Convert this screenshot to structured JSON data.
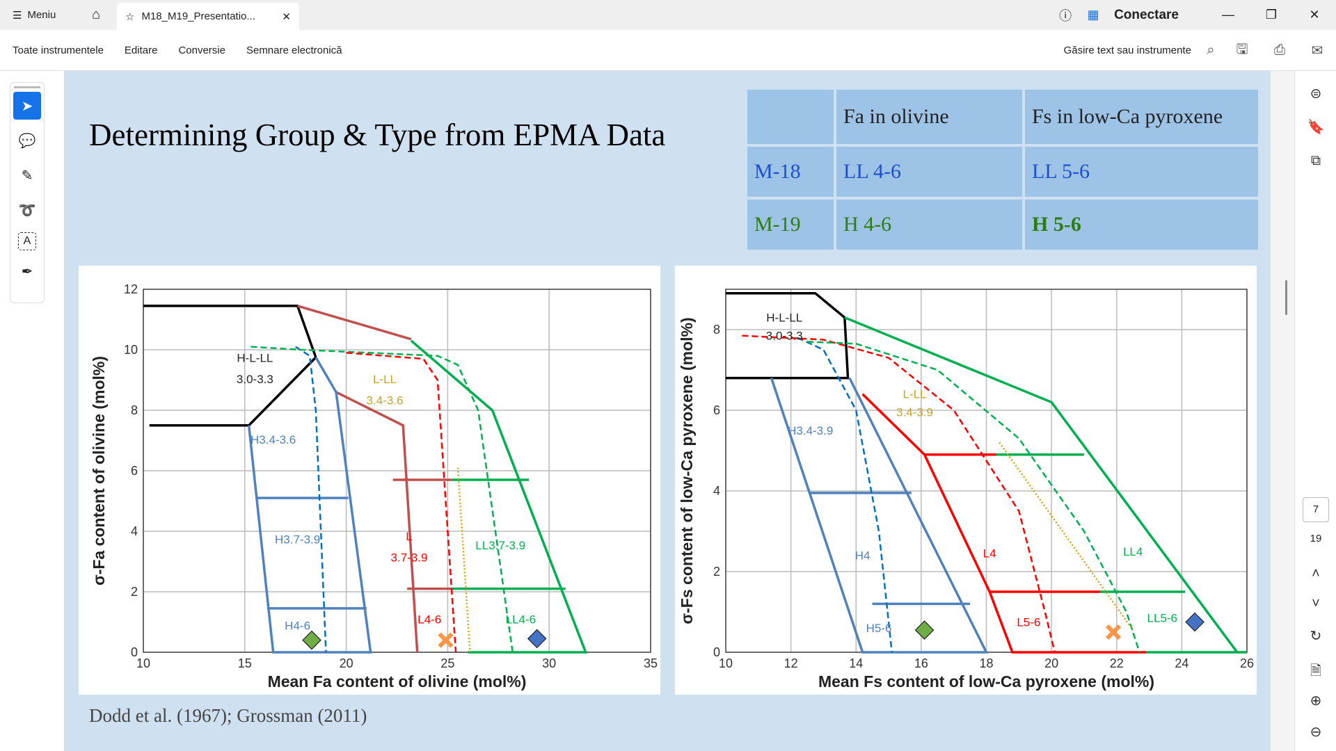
{
  "app": {
    "menu_label": "Meniu",
    "tab_title": "M18_M19_Presentatio...",
    "signin": "Conectare"
  },
  "toolbar": {
    "items": [
      "Toate instrumentele",
      "Editare",
      "Conversie",
      "Semnare electronică"
    ],
    "search_label": "Găsire text sau instrumente"
  },
  "navigation": {
    "current_page": "7",
    "total_pages": "19"
  },
  "slide": {
    "title": "Determining Group & Type from EPMA Data",
    "table": {
      "headers": [
        "",
        "Fa in olivine",
        "Fs in low-Ca pyroxene"
      ],
      "rows": [
        {
          "cells": [
            "M-18",
            "LL 4-6",
            "LL 5-6"
          ],
          "color": "#1f4fd1"
        },
        {
          "cells": [
            "M-19",
            "H 4-6",
            "H 5-6"
          ],
          "color": "#2e7d12"
        }
      ]
    },
    "citation": "Dodd et al. (1967); Grossman (2011)"
  },
  "chart_data": [
    {
      "type": "line",
      "xlabel": "Mean Fa content of olivine (mol%)",
      "ylabel": "σ-Fa content of olivine (mol%)",
      "xlim": [
        10,
        35
      ],
      "ylim": [
        0,
        12
      ],
      "xticks": [
        10,
        15,
        20,
        25,
        30,
        35
      ],
      "yticks": [
        0,
        2,
        4,
        6,
        8,
        10,
        12
      ],
      "grid": true,
      "series": [
        {
          "color": "#000000",
          "dash": "solid",
          "points": [
            [
              10,
              11.45
            ],
            [
              17.6,
              11.45
            ],
            [
              18.5,
              9.75
            ],
            [
              15.2,
              7.5
            ],
            [
              10.3,
              7.5
            ]
          ]
        },
        {
          "color": "#c0504d",
          "dash": "solid",
          "points": [
            [
              17.6,
              11.45
            ],
            [
              23.2,
              10.35
            ]
          ]
        },
        {
          "color": "#c0504d",
          "dash": "solid",
          "points": [
            [
              19.5,
              8.6
            ],
            [
              22.8,
              7.5
            ],
            [
              23.5,
              0
            ]
          ]
        },
        {
          "color": "#c0504d",
          "dash": "solid",
          "points": [
            [
              22.3,
              5.7
            ],
            [
              25.2,
              5.7
            ]
          ]
        },
        {
          "color": "#c0504d",
          "dash": "solid",
          "points": [
            [
              23,
              2.1
            ],
            [
              25.2,
              2.1
            ]
          ]
        },
        {
          "color": "#00b050",
          "dash": "solid",
          "points": [
            [
              23.2,
              10.3
            ],
            [
              27.2,
              8
            ],
            [
              31.8,
              0
            ],
            [
              26,
              0
            ]
          ]
        },
        {
          "color": "#00b050",
          "dash": "solid",
          "points": [
            [
              25.2,
              5.7
            ],
            [
              29,
              5.7
            ]
          ]
        },
        {
          "color": "#00b050",
          "dash": "solid",
          "points": [
            [
              25.2,
              2.1
            ],
            [
              30.8,
              2.1
            ]
          ]
        },
        {
          "color": "#4f81bd",
          "dash": "solid",
          "points": [
            [
              15.2,
              7.5
            ],
            [
              16.4,
              0
            ],
            [
              21.2,
              0
            ],
            [
              19.5,
              8.6
            ],
            [
              18.5,
              9.75
            ]
          ]
        },
        {
          "color": "#4f81bd",
          "dash": "solid",
          "points": [
            [
              15.6,
              5.1
            ],
            [
              20.1,
              5.1
            ]
          ]
        },
        {
          "color": "#4f81bd",
          "dash": "solid",
          "points": [
            [
              16.1,
              1.45
            ],
            [
              21,
              1.45
            ]
          ]
        },
        {
          "color": "#0070c0",
          "dash": "dashed",
          "points": [
            [
              17.5,
              10.1
            ],
            [
              18.2,
              9.8
            ],
            [
              18.5,
              8
            ],
            [
              19,
              0
            ]
          ]
        },
        {
          "color": "#00b050",
          "dash": "dashed",
          "points": [
            [
              15.3,
              10.1
            ],
            [
              17.8,
              10
            ],
            [
              24.5,
              9.8
            ],
            [
              25.5,
              9.5
            ],
            [
              26.5,
              8
            ],
            [
              28.2,
              0
            ]
          ]
        },
        {
          "color": "#ff0000",
          "dash": "dashed",
          "points": [
            [
              20,
              9.9
            ],
            [
              23.8,
              9.7
            ],
            [
              24.5,
              9
            ],
            [
              25.4,
              0
            ]
          ]
        },
        {
          "color": "#d4a017",
          "dash": "dotted",
          "points": [
            [
              25.5,
              6.1
            ],
            [
              26.1,
              0
            ]
          ]
        }
      ],
      "markers": [
        {
          "shape": "diamond",
          "color": "#70ad47",
          "x": 18.3,
          "y": 0.4
        },
        {
          "shape": "x",
          "color": "#f79646",
          "x": 24.9,
          "y": 0.4
        },
        {
          "shape": "diamond",
          "color": "#4472c4",
          "x": 29.4,
          "y": 0.45
        }
      ],
      "labels": [
        {
          "text": "H-L-LL",
          "x": 15.5,
          "y": 9.6,
          "color": "#222"
        },
        {
          "text": "3.0-3.3",
          "x": 15.5,
          "y": 8.9,
          "color": "#222"
        },
        {
          "text": "L-LL",
          "x": 21.9,
          "y": 8.9,
          "color": "#c9a227"
        },
        {
          "text": "3.4-3.6",
          "x": 21.9,
          "y": 8.2,
          "color": "#c9a227"
        },
        {
          "text": "H3.4-3.6",
          "x": 16.4,
          "y": 6.9,
          "color": "#4f81bd"
        },
        {
          "text": "H3.7-3.9",
          "x": 17.6,
          "y": 3.6,
          "color": "#4f81bd"
        },
        {
          "text": "L",
          "x": 23.1,
          "y": 3.7,
          "color": "#ff0000"
        },
        {
          "text": "3.7-3.9",
          "x": 23.1,
          "y": 3.0,
          "color": "#ff0000"
        },
        {
          "text": "LL3.7-3.9",
          "x": 27.6,
          "y": 3.4,
          "color": "#00b050"
        },
        {
          "text": "H4-6",
          "x": 17.6,
          "y": 0.75,
          "color": "#4f81bd"
        },
        {
          "text": "L4-6",
          "x": 24.1,
          "y": 0.95,
          "color": "#ff0000"
        },
        {
          "text": "LL4-6",
          "x": 28.6,
          "y": 0.95,
          "color": "#00b050"
        }
      ]
    },
    {
      "type": "line",
      "xlabel": "Mean Fs content of low-Ca pyroxene (mol%)",
      "ylabel": "σ-Fs content of low-Ca pyroxene (mol%)",
      "xlim": [
        10,
        26
      ],
      "ylim": [
        0,
        9
      ],
      "xticks": [
        10,
        12,
        14,
        16,
        18,
        20,
        22,
        24,
        26
      ],
      "yticks": [
        0,
        2,
        4,
        6,
        8
      ],
      "grid": true,
      "series": [
        {
          "color": "#000000",
          "dash": "solid",
          "points": [
            [
              10,
              8.9
            ],
            [
              12.75,
              8.9
            ],
            [
              13.65,
              8.3
            ],
            [
              13.75,
              6.8
            ],
            [
              10,
              6.8
            ]
          ]
        },
        {
          "color": "#00b050",
          "dash": "solid",
          "points": [
            [
              13.65,
              8.3
            ],
            [
              20,
              6.2
            ],
            [
              25.7,
              0
            ]
          ]
        },
        {
          "color": "#00b050",
          "dash": "solid",
          "points": [
            [
              18.3,
              4.9
            ],
            [
              21,
              4.9
            ]
          ]
        },
        {
          "color": "#00b050",
          "dash": "solid",
          "points": [
            [
              21.5,
              1.5
            ],
            [
              24.1,
              1.5
            ]
          ]
        },
        {
          "color": "#00b050",
          "dash": "solid",
          "points": [
            [
              22.9,
              0
            ],
            [
              26,
              0
            ]
          ]
        },
        {
          "color": "#ff0000",
          "dash": "solid",
          "points": [
            [
              14.2,
              6.4
            ],
            [
              16.1,
              4.9
            ],
            [
              18.1,
              1.5
            ],
            [
              18.8,
              0
            ],
            [
              22.9,
              0
            ]
          ]
        },
        {
          "color": "#ff0000",
          "dash": "solid",
          "points": [
            [
              16.1,
              4.9
            ],
            [
              18.3,
              4.9
            ]
          ]
        },
        {
          "color": "#ff0000",
          "dash": "solid",
          "points": [
            [
              18.1,
              1.5
            ],
            [
              21.5,
              1.5
            ]
          ]
        },
        {
          "color": "#4f81bd",
          "dash": "solid",
          "points": [
            [
              11.4,
              6.8
            ],
            [
              14.2,
              0
            ],
            [
              18,
              0
            ],
            [
              13.8,
              6.8
            ]
          ]
        },
        {
          "color": "#4f81bd",
          "dash": "solid",
          "points": [
            [
              12.6,
              3.95
            ],
            [
              15.7,
              3.95
            ]
          ]
        },
        {
          "color": "#4f81bd",
          "dash": "solid",
          "points": [
            [
              14.5,
              1.2
            ],
            [
              17.5,
              1.2
            ]
          ]
        },
        {
          "color": "#0070c0",
          "dash": "dashed",
          "points": [
            [
              12.2,
              7.8
            ],
            [
              13,
              7.5
            ],
            [
              14,
              6
            ],
            [
              14.7,
              3
            ],
            [
              15.1,
              0
            ]
          ]
        },
        {
          "color": "#ff0000",
          "dash": "dashed",
          "points": [
            [
              10.5,
              7.85
            ],
            [
              13,
              7.75
            ],
            [
              15,
              7.3
            ],
            [
              17,
              6
            ],
            [
              19,
              3.5
            ],
            [
              19.8,
              1
            ],
            [
              20.1,
              0
            ]
          ]
        },
        {
          "color": "#00b050",
          "dash": "dashed",
          "points": [
            [
              12.5,
              7.7
            ],
            [
              14,
              7.65
            ],
            [
              16.5,
              7
            ],
            [
              19,
              5.3
            ],
            [
              21,
              3
            ],
            [
              22.3,
              1
            ],
            [
              22.7,
              0
            ]
          ]
        },
        {
          "color": "#d4a017",
          "dash": "dotted",
          "points": [
            [
              18.4,
              5.2
            ],
            [
              22.5,
              0.55
            ]
          ]
        }
      ],
      "markers": [
        {
          "shape": "diamond",
          "color": "#70ad47",
          "x": 16.1,
          "y": 0.55
        },
        {
          "shape": "x",
          "color": "#f79646",
          "x": 21.9,
          "y": 0.5
        },
        {
          "shape": "diamond",
          "color": "#4472c4",
          "x": 24.4,
          "y": 0.75
        }
      ],
      "labels": [
        {
          "text": "H-L-LL",
          "x": 11.8,
          "y": 8.2,
          "color": "#222"
        },
        {
          "text": "3.0-3.3",
          "x": 11.8,
          "y": 7.75,
          "color": "#222"
        },
        {
          "text": "L-LL",
          "x": 15.8,
          "y": 6.3,
          "color": "#c9a227"
        },
        {
          "text": "3.4-3.9",
          "x": 15.8,
          "y": 5.85,
          "color": "#c9a227"
        },
        {
          "text": "H3.4-3.9",
          "x": 12.6,
          "y": 5.4,
          "color": "#4f81bd"
        },
        {
          "text": "H4",
          "x": 14.2,
          "y": 2.3,
          "color": "#4f81bd"
        },
        {
          "text": "L4",
          "x": 18.1,
          "y": 2.35,
          "color": "#ff0000"
        },
        {
          "text": "LL4",
          "x": 22.5,
          "y": 2.4,
          "color": "#00b050"
        },
        {
          "text": "H5-6",
          "x": 14.7,
          "y": 0.5,
          "color": "#4f81bd"
        },
        {
          "text": "L5-6",
          "x": 19.3,
          "y": 0.65,
          "color": "#ff0000"
        },
        {
          "text": "LL5-6",
          "x": 23.4,
          "y": 0.75,
          "color": "#00b050"
        }
      ]
    }
  ]
}
